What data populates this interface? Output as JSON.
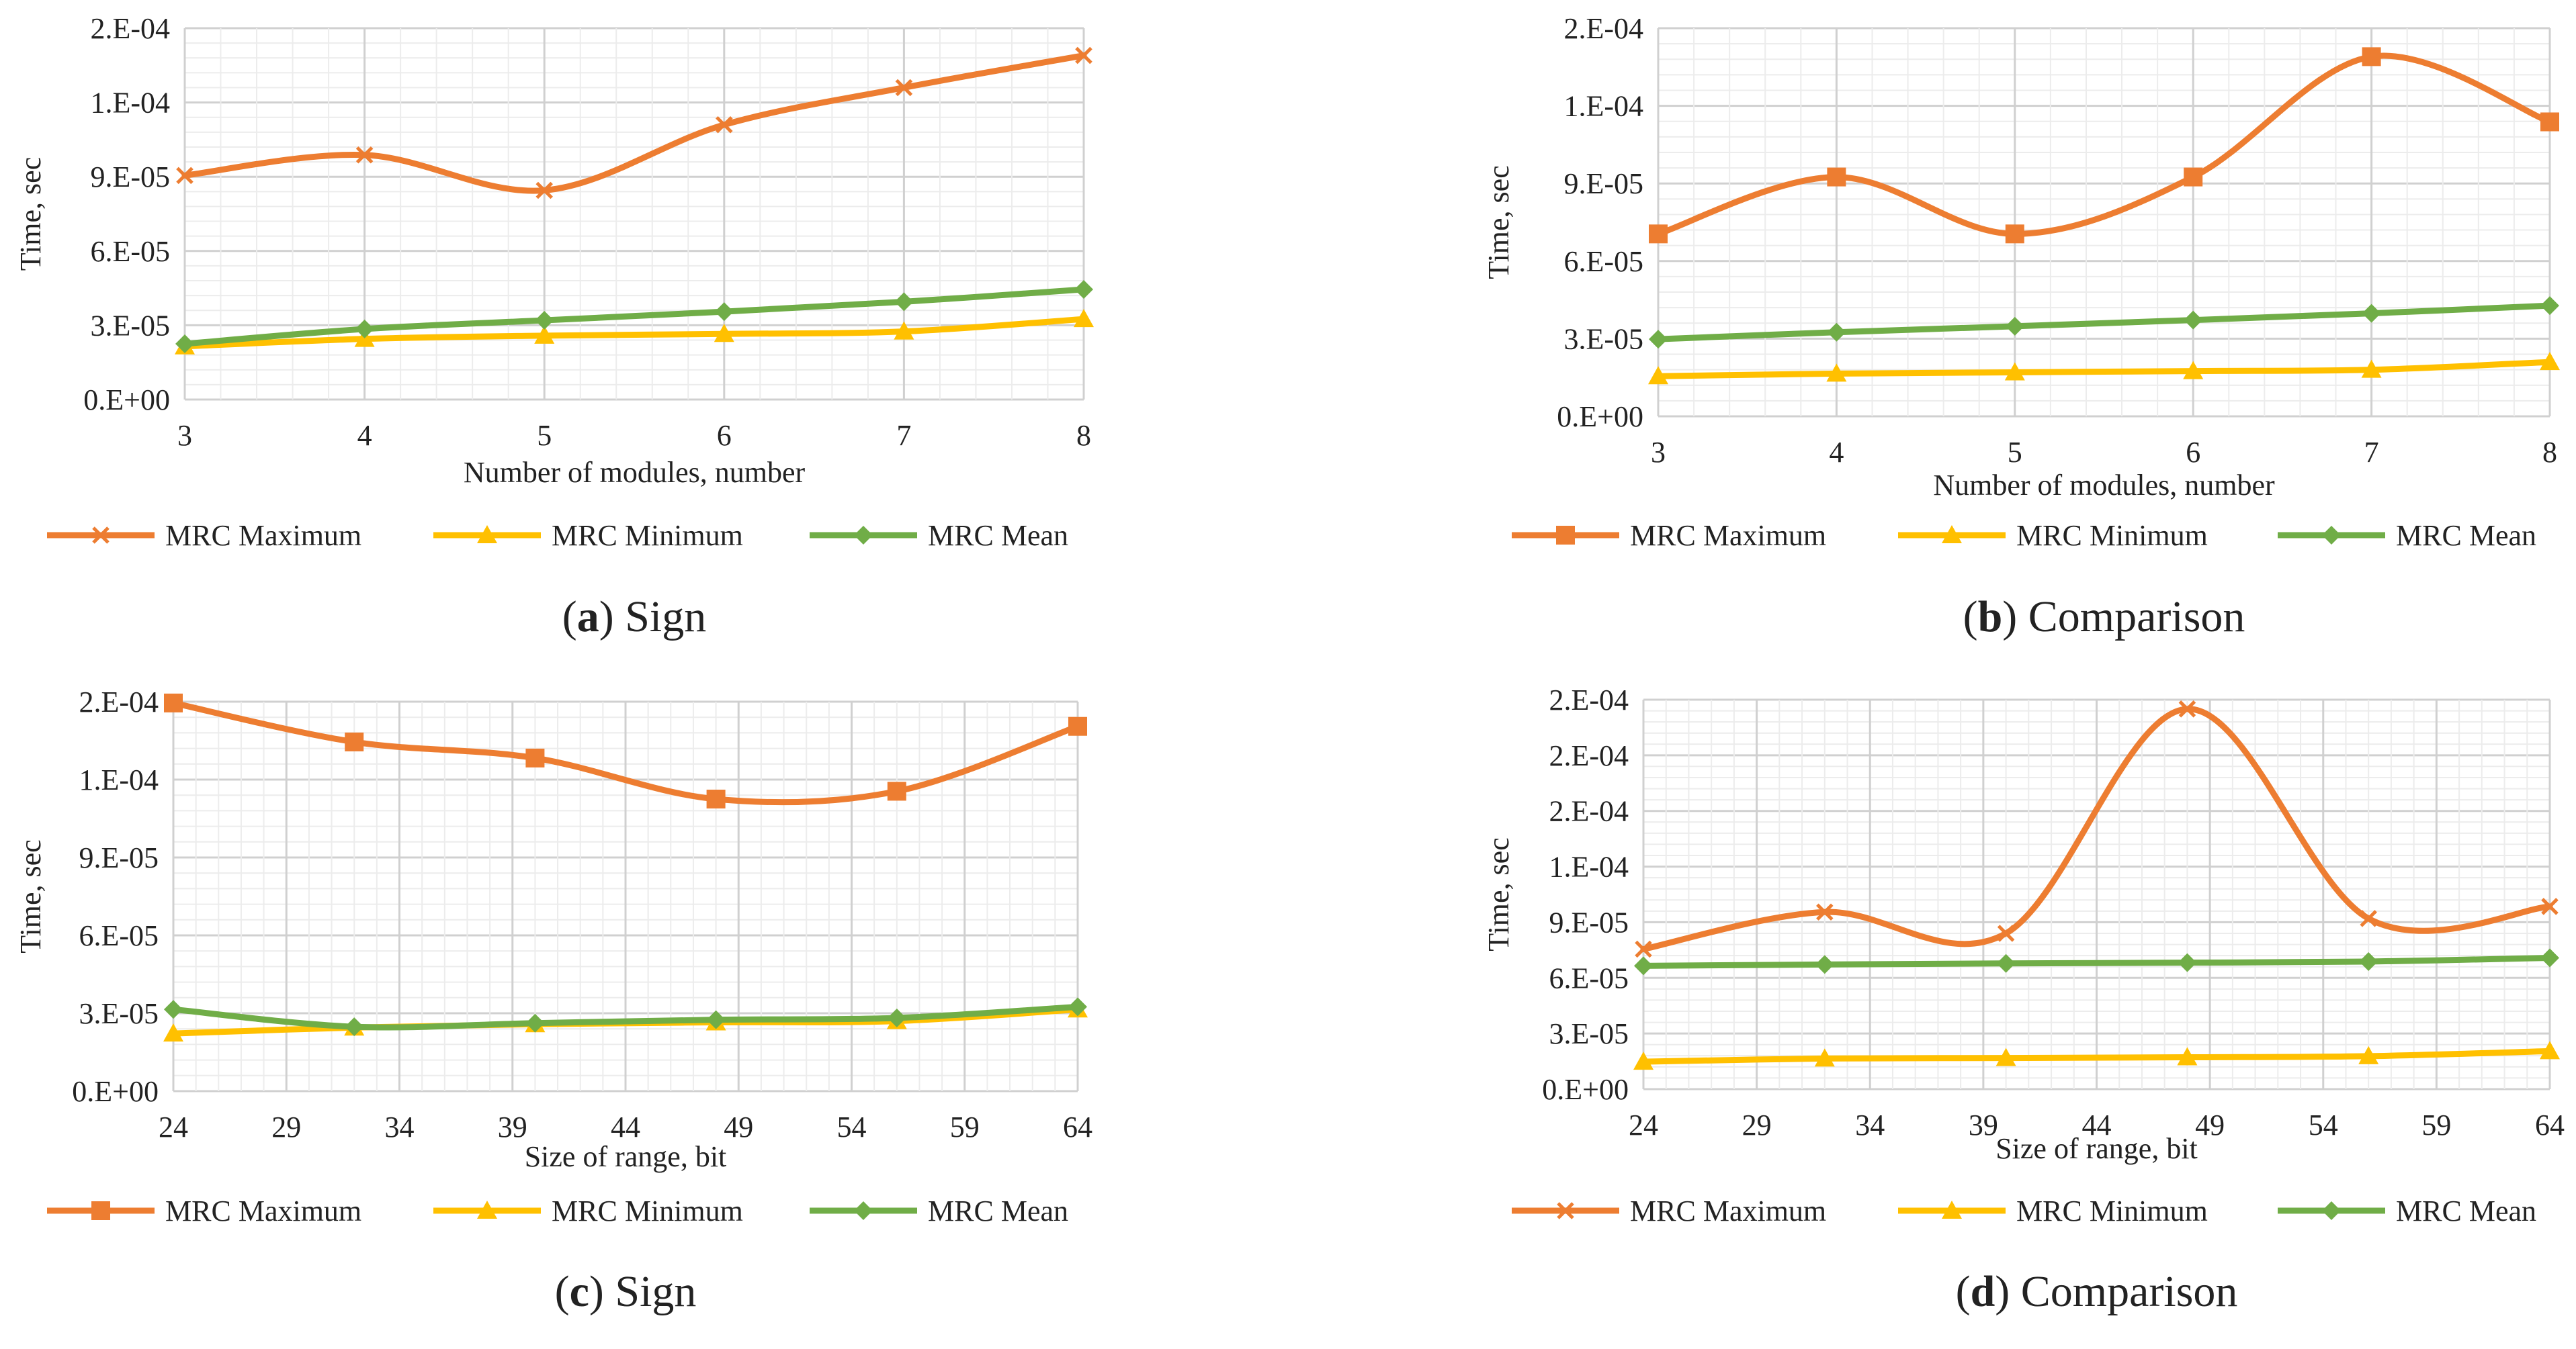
{
  "chart_data": [
    {
      "type": "line",
      "id": "a",
      "caption_letter": "a",
      "caption_text": "Sign",
      "xlabel": "Number of modules, number",
      "ylabel": "Time, sec",
      "x": [
        3,
        4,
        5,
        6,
        7,
        8
      ],
      "xticks": [
        "3",
        "4",
        "5",
        "6",
        "7",
        "8"
      ],
      "ytick_labels": [
        "0.E+00",
        "3.E-05",
        "6.E-05",
        "9.E-05",
        "1.E-04",
        "2.E-04"
      ],
      "ylim": [
        0,
        0.00015
      ],
      "ystep": 3e-05,
      "series": [
        {
          "name": "MRC Maximum",
          "color": "#ED7D31",
          "marker": "x",
          "values": [
            9.05e-05,
            9.88e-05,
            8.45e-05,
            0.000111,
            0.000126,
            0.000139
          ]
        },
        {
          "name": "MRC Minimum",
          "color": "#FFC000",
          "marker": "triangle",
          "values": [
            2.15e-05,
            2.45e-05,
            2.58e-05,
            2.65e-05,
            2.75e-05,
            3.25e-05
          ]
        },
        {
          "name": "MRC Mean",
          "color": "#70AD47",
          "marker": "diamond",
          "values": [
            2.25e-05,
            2.85e-05,
            3.2e-05,
            3.55e-05,
            3.95e-05,
            4.45e-05
          ]
        }
      ]
    },
    {
      "type": "line",
      "id": "b",
      "caption_letter": "b",
      "caption_text": "Comparison",
      "xlabel": "Number of modules, number",
      "ylabel": "Time, sec",
      "x": [
        3,
        4,
        5,
        6,
        7,
        8
      ],
      "xticks": [
        "3",
        "4",
        "5",
        "6",
        "7",
        "8"
      ],
      "ytick_labels": [
        "0.E+00",
        "3.E-05",
        "6.E-05",
        "9.E-05",
        "1.E-04",
        "2.E-04"
      ],
      "ylim": [
        0,
        0.00015
      ],
      "ystep": 3e-05,
      "series": [
        {
          "name": "MRC Maximum",
          "color": "#ED7D31",
          "marker": "square",
          "values": [
            7.05e-05,
            9.25e-05,
            7.05e-05,
            9.25e-05,
            0.000139,
            0.0001138
          ]
        },
        {
          "name": "MRC Minimum",
          "color": "#FFC000",
          "marker": "triangle",
          "values": [
            1.55e-05,
            1.65e-05,
            1.7e-05,
            1.75e-05,
            1.8e-05,
            2.1e-05
          ]
        },
        {
          "name": "MRC Mean",
          "color": "#70AD47",
          "marker": "diamond",
          "values": [
            2.98e-05,
            3.25e-05,
            3.48e-05,
            3.72e-05,
            3.98e-05,
            4.28e-05
          ]
        }
      ]
    },
    {
      "type": "line",
      "id": "c",
      "caption_letter": "c",
      "caption_text": "Sign",
      "xlabel": "Size of range, bit",
      "ylabel": "Time, sec",
      "x": [
        24,
        32,
        40,
        48,
        56,
        64
      ],
      "xrange": [
        24,
        64
      ],
      "xticks": [
        "24",
        "29",
        "34",
        "39",
        "44",
        "49",
        "54",
        "59",
        "64"
      ],
      "xtick_values": [
        24,
        29,
        34,
        39,
        44,
        49,
        54,
        59,
        64
      ],
      "ytick_labels": [
        "0.E+00",
        "3.E-05",
        "6.E-05",
        "9.E-05",
        "1.E-04",
        "2.E-04"
      ],
      "ylim": [
        0,
        0.00015
      ],
      "ystep": 3e-05,
      "series": [
        {
          "name": "MRC Maximum",
          "color": "#ED7D31",
          "marker": "square",
          "values": [
            0.0001495,
            0.0001345,
            0.0001283,
            0.0001125,
            0.0001155,
            0.0001405
          ]
        },
        {
          "name": "MRC Minimum",
          "color": "#FFC000",
          "marker": "triangle",
          "values": [
            2.22e-05,
            2.45e-05,
            2.58e-05,
            2.65e-05,
            2.7e-05,
            3.15e-05
          ]
        },
        {
          "name": "MRC Mean",
          "color": "#70AD47",
          "marker": "diamond",
          "values": [
            3.15e-05,
            2.48e-05,
            2.62e-05,
            2.75e-05,
            2.82e-05,
            3.25e-05
          ]
        }
      ]
    },
    {
      "type": "line",
      "id": "d",
      "caption_letter": "d",
      "caption_text": "Comparison",
      "xlabel": "Size of range, bit",
      "ylabel": "Time, sec",
      "x": [
        24,
        32,
        40,
        48,
        56,
        64
      ],
      "xrange": [
        24,
        64
      ],
      "xticks": [
        "24",
        "29",
        "34",
        "39",
        "44",
        "49",
        "54",
        "59",
        "64"
      ],
      "xtick_values": [
        24,
        29,
        34,
        39,
        44,
        49,
        54,
        59,
        64
      ],
      "ytick_labels": [
        "0.E+00",
        "3.E-05",
        "6.E-05",
        "9.E-05",
        "1.E-04",
        "2.E-04",
        "2.E-04",
        "2.E-04"
      ],
      "ylim": [
        0,
        0.00021
      ],
      "ystep": 3e-05,
      "series": [
        {
          "name": "MRC Maximum",
          "color": "#ED7D31",
          "marker": "x",
          "values": [
            7.55e-05,
            9.55e-05,
            8.4e-05,
            0.000205,
            9.2e-05,
            9.85e-05
          ]
        },
        {
          "name": "MRC Minimum",
          "color": "#FFC000",
          "marker": "triangle",
          "values": [
            1.48e-05,
            1.65e-05,
            1.68e-05,
            1.72e-05,
            1.78e-05,
            2.05e-05
          ]
        },
        {
          "name": "MRC Mean",
          "color": "#70AD47",
          "marker": "diamond",
          "values": [
            6.65e-05,
            6.72e-05,
            6.78e-05,
            6.82e-05,
            6.88e-05,
            7.08e-05
          ]
        }
      ]
    }
  ]
}
